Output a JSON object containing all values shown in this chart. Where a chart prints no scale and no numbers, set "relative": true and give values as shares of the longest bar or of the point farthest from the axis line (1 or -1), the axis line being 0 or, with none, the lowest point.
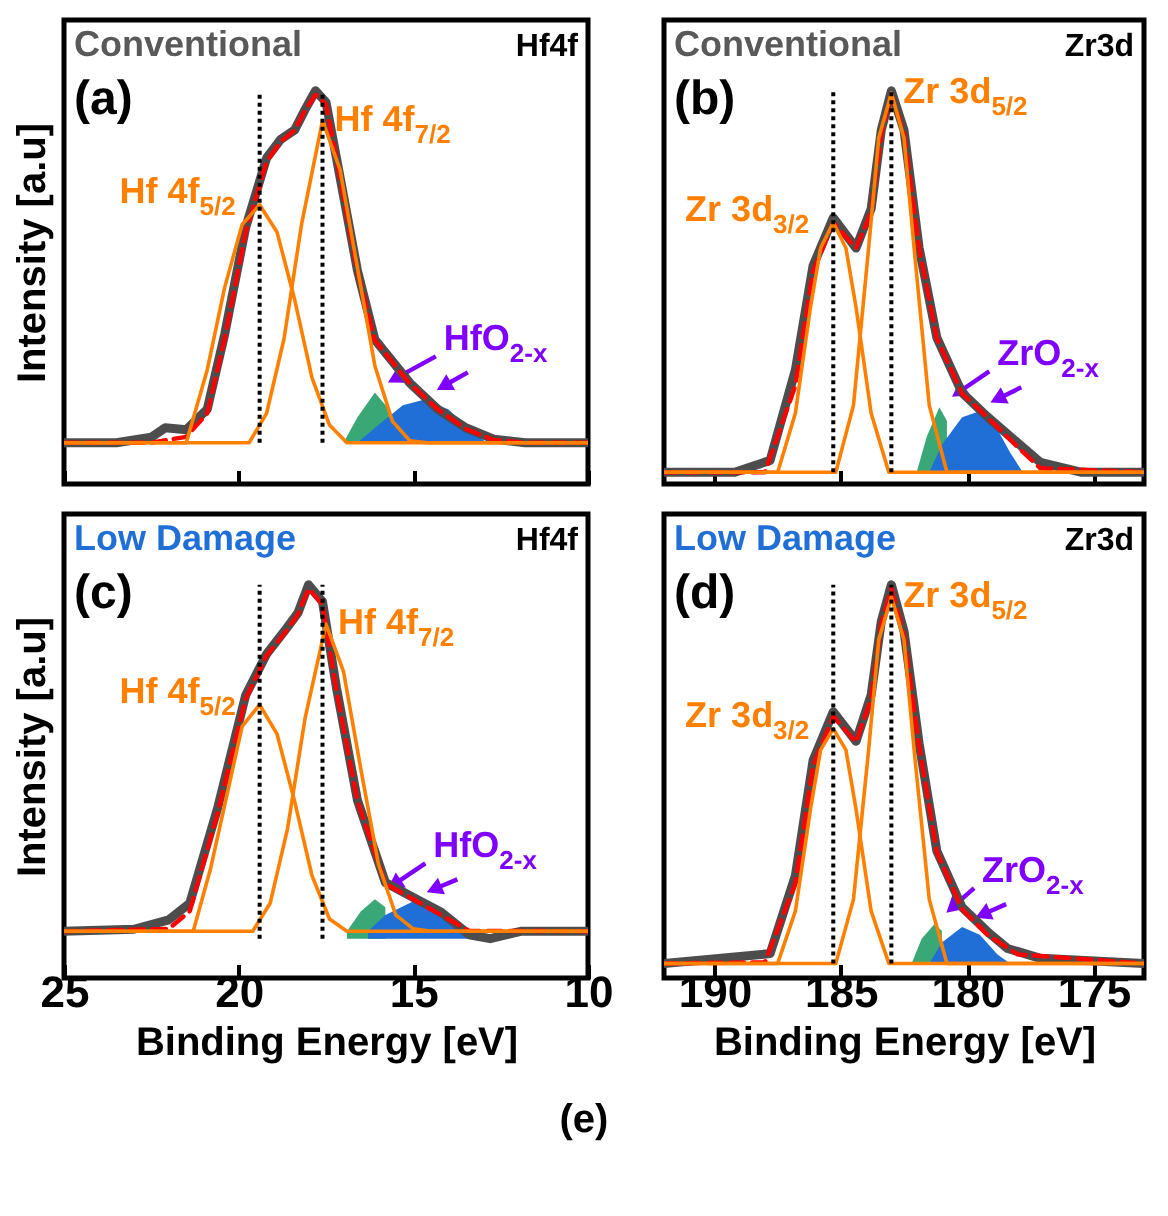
{
  "chart_data": [
    {
      "type": "line",
      "relative": true,
      "title": "Conventional",
      "subtitle": "Hf4f",
      "ylabel": "Intensity [a.u]",
      "xlim": [
        25,
        10
      ],
      "xticks": [
        25,
        20,
        15,
        10
      ],
      "tick_labels": false,
      "series": [
        {
          "color": "#4d4d4d",
          "x": [
            25,
            23.5,
            22.5,
            22.1,
            21.5,
            20.9,
            20.4,
            19.8,
            19.2,
            18.8,
            18.4,
            18.1,
            17.8,
            17.5,
            17.1,
            16.6,
            16.1,
            15.1,
            14.3,
            13.5,
            12.7,
            11.8,
            10.8,
            10
          ],
          "values": [
            0.105,
            0.105,
            0.119,
            0.143,
            0.138,
            0.19,
            0.381,
            0.652,
            0.829,
            0.876,
            0.9,
            0.952,
            1,
            0.971,
            0.781,
            0.543,
            0.367,
            0.257,
            0.19,
            0.143,
            0.114,
            0.105,
            0.105,
            0.105
          ]
        },
        {
          "color": "#ff0000",
          "line_style": "dashed",
          "x": [
            25,
            22.5,
            21.5,
            20.9,
            20.4,
            19.8,
            19.2,
            18.8,
            18.4,
            18.1,
            17.8,
            17.5,
            17.1,
            16.6,
            16.1,
            15.1,
            14.3,
            13.5,
            12.7,
            11.8,
            10
          ],
          "values": [
            0.105,
            0.105,
            0.12,
            0.18,
            0.37,
            0.64,
            0.82,
            0.87,
            0.9,
            0.95,
            0.99,
            0.965,
            0.78,
            0.54,
            0.365,
            0.255,
            0.19,
            0.14,
            0.112,
            0.105,
            0.105
          ]
        },
        {
          "name": "Hf 4f$_{5/2}$",
          "color": "#ff8000",
          "x": [
            25,
            21.5,
            20.9,
            20.4,
            19.9,
            19.4,
            18.9,
            18.4,
            17.9,
            17.4,
            16.9,
            10
          ],
          "values": [
            0.105,
            0.105,
            0.29,
            0.5,
            0.66,
            0.71,
            0.64,
            0.47,
            0.27,
            0.15,
            0.105,
            0.105
          ]
        },
        {
          "name": "Hf 4f$_{7/2}$",
          "color": "#ff8000",
          "x": [
            25,
            19.7,
            19.2,
            18.7,
            18.2,
            17.6,
            17.1,
            16.6,
            16.1,
            15.6,
            15.1,
            14.6,
            10
          ],
          "values": [
            0.105,
            0.105,
            0.18,
            0.37,
            0.66,
            0.924,
            0.8,
            0.55,
            0.3,
            0.16,
            0.11,
            0.105,
            0.105
          ]
        },
        {
          "name": "HfO$_{2-x}$",
          "type": "area",
          "color": "#3aa876",
          "x": [
            17,
            16.6,
            16.1,
            15.7
          ],
          "values": [
            0.105,
            0.17,
            0.233,
            0.19
          ]
        },
        {
          "type": "area",
          "color": "#1f6fd6",
          "x": [
            16.6,
            16,
            15.3,
            14.7,
            14,
            13.4,
            12.9
          ],
          "values": [
            0.105,
            0.15,
            0.2,
            0.214,
            0.19,
            0.14,
            0.105
          ]
        }
      ],
      "ref_lines": [
        {
          "axis": "x",
          "value": 19.4,
          "color": "#000000",
          "line_style": "dotted"
        },
        {
          "axis": "x",
          "value": 17.6,
          "color": "#000000",
          "line_style": "dotted"
        }
      ],
      "annotations": [
        "(a)"
      ]
    },
    {
      "type": "line",
      "relative": true,
      "title": "Conventional",
      "subtitle": "Zr3d",
      "xlim": [
        192,
        173
      ],
      "xticks": [
        190,
        185,
        180,
        175
      ],
      "tick_labels": false,
      "series": [
        {
          "color": "#4d4d4d",
          "x": [
            192,
            189.2,
            187.8,
            186.8,
            186.1,
            185.3,
            184.4,
            183.8,
            183.4,
            183,
            182.5,
            181.9,
            181.2,
            180.2,
            179.2,
            178.1,
            177.1,
            175.5,
            173
          ],
          "values": [
            0.03,
            0.03,
            0.06,
            0.29,
            0.555,
            0.677,
            0.6,
            0.7,
            0.9,
            1,
            0.9,
            0.6,
            0.372,
            0.232,
            0.171,
            0.11,
            0.055,
            0.03,
            0.03
          ]
        },
        {
          "color": "#ff0000",
          "line_style": "dashed",
          "x": [
            192,
            188,
            186.8,
            186.1,
            185.3,
            184.4,
            183.8,
            183.4,
            183,
            182.5,
            181.9,
            181.2,
            180.2,
            179.2,
            178.1,
            177.1,
            173
          ],
          "values": [
            0.03,
            0.03,
            0.25,
            0.54,
            0.665,
            0.6,
            0.69,
            0.89,
            0.99,
            0.89,
            0.6,
            0.37,
            0.23,
            0.17,
            0.1,
            0.04,
            0.03
          ]
        },
        {
          "name": "Zr 3d$_{3/2}$",
          "color": "#ff8000",
          "x": [
            192,
            187.5,
            186.8,
            186.2,
            185.8,
            185.3,
            184.8,
            184.4,
            183.8,
            183.1,
            173
          ],
          "values": [
            0.03,
            0.03,
            0.18,
            0.45,
            0.6,
            0.665,
            0.6,
            0.45,
            0.18,
            0.03,
            0.03
          ]
        },
        {
          "name": "Zr 3d$_{5/2}$",
          "color": "#ff8000",
          "x": [
            192,
            185.2,
            184.5,
            183.9,
            183.5,
            183,
            182.5,
            182.1,
            181.5,
            180.8,
            173
          ],
          "values": [
            0.03,
            0.03,
            0.2,
            0.6,
            0.88,
            0.994,
            0.88,
            0.6,
            0.2,
            0.03,
            0.03
          ]
        },
        {
          "name": "ZrO$_{2-x}$",
          "type": "area",
          "color": "#3aa876",
          "x": [
            182,
            181.6,
            181.1,
            180.8
          ],
          "values": [
            0.03,
            0.12,
            0.195,
            0.16
          ]
        },
        {
          "type": "area",
          "color": "#1f6fd6",
          "x": [
            181.5,
            181,
            180.2,
            179.6,
            178.9,
            178.3,
            177.8
          ],
          "values": [
            0.03,
            0.1,
            0.17,
            0.183,
            0.15,
            0.08,
            0.03
          ]
        }
      ],
      "ref_lines": [
        {
          "axis": "x",
          "value": 185.3,
          "color": "#000000",
          "line_style": "dotted"
        },
        {
          "axis": "x",
          "value": 183,
          "color": "#000000",
          "line_style": "dotted"
        }
      ],
      "annotations": [
        "(b)"
      ]
    },
    {
      "type": "line",
      "relative": true,
      "title": "Low Damage",
      "subtitle": "Hf4f",
      "ylabel": "Intensity [a.u]",
      "xlabel": "Binding Energy [eV]",
      "xlim": [
        25,
        10
      ],
      "xticks": [
        25,
        20,
        15,
        10
      ],
      "tick_labels": "x",
      "series": [
        {
          "color": "#4d4d4d",
          "x": [
            25,
            23,
            22,
            21.4,
            20.6,
            19.8,
            19.2,
            18.7,
            18.3,
            18,
            17.6,
            17.2,
            16.6,
            15.8,
            14.8,
            14.2,
            13.4,
            12.8,
            11.9,
            10.9,
            10
          ],
          "values": [
            0.119,
            0.124,
            0.148,
            0.19,
            0.433,
            0.719,
            0.824,
            0.881,
            0.929,
            1,
            0.957,
            0.738,
            0.452,
            0.243,
            0.195,
            0.167,
            0.11,
            0.1,
            0.119,
            0.119,
            0.119
          ]
        },
        {
          "color": "#ff0000",
          "line_style": "dashed",
          "x": [
            25,
            22,
            21.4,
            20.6,
            19.8,
            19.2,
            18.7,
            18.3,
            18,
            17.6,
            17.2,
            16.6,
            15.8,
            14.8,
            14.2,
            13.4,
            10
          ],
          "values": [
            0.119,
            0.125,
            0.17,
            0.42,
            0.71,
            0.82,
            0.875,
            0.925,
            0.99,
            0.95,
            0.73,
            0.45,
            0.24,
            0.19,
            0.16,
            0.12,
            0.119
          ]
        },
        {
          "name": "Hf 4f$_{5/2}$",
          "color": "#ff8000",
          "x": [
            25,
            21.3,
            20.8,
            20.3,
            19.9,
            19.4,
            18.9,
            18.4,
            17.9,
            17.4,
            16.9,
            10
          ],
          "values": [
            0.119,
            0.119,
            0.28,
            0.48,
            0.64,
            0.695,
            0.62,
            0.45,
            0.26,
            0.15,
            0.119,
            0.119
          ]
        },
        {
          "name": "Hf 4f$_{7/2}$",
          "color": "#ff8000",
          "x": [
            25,
            19.6,
            19.1,
            18.6,
            18.1,
            17.5,
            17,
            16.5,
            16,
            15.5,
            15,
            14.5,
            10
          ],
          "values": [
            0.119,
            0.119,
            0.19,
            0.38,
            0.66,
            0.9,
            0.78,
            0.53,
            0.29,
            0.16,
            0.125,
            0.119,
            0.119
          ]
        },
        {
          "name": "HfO$_{2-x}$",
          "type": "area",
          "color": "#3aa876",
          "x": [
            16.9,
            16.5,
            16.1,
            15.8
          ],
          "values": [
            0.119,
            0.17,
            0.2,
            0.18
          ]
        },
        {
          "type": "area",
          "color": "#1f6fd6",
          "x": [
            16.3,
            15.8,
            15,
            14.4,
            13.9,
            13.4
          ],
          "values": [
            0.119,
            0.16,
            0.195,
            0.18,
            0.14,
            0.119
          ]
        }
      ],
      "ref_lines": [
        {
          "axis": "x",
          "value": 19.4,
          "color": "#000000",
          "line_style": "dotted"
        },
        {
          "axis": "x",
          "value": 17.6,
          "color": "#000000",
          "line_style": "dotted"
        }
      ],
      "annotations": [
        "(c)"
      ]
    },
    {
      "type": "line",
      "relative": true,
      "title": "Low Damage",
      "subtitle": "Zr3d",
      "xlabel": "Binding Energy [eV]",
      "xlim": [
        192,
        173
      ],
      "xticks": [
        190,
        185,
        180,
        175
      ],
      "tick_labels": "x",
      "series": [
        {
          "color": "#4d4d4d",
          "x": [
            192,
            187.8,
            186.8,
            186.1,
            185.3,
            184.4,
            183.8,
            183.4,
            183,
            182.5,
            181.9,
            181.2,
            180.2,
            179.2,
            178.4,
            177.1,
            173
          ],
          "values": [
            0.037,
            0.062,
            0.26,
            0.553,
            0.677,
            0.602,
            0.72,
            0.907,
            1,
            0.882,
            0.596,
            0.323,
            0.18,
            0.118,
            0.075,
            0.05,
            0.037
          ]
        },
        {
          "color": "#ff0000",
          "line_style": "dashed",
          "x": [
            192,
            188,
            186.8,
            186.1,
            185.3,
            184.4,
            183.8,
            183.4,
            183,
            182.5,
            181.9,
            181.2,
            180.2,
            179.2,
            178,
            173
          ],
          "values": [
            0.037,
            0.04,
            0.24,
            0.54,
            0.665,
            0.6,
            0.71,
            0.9,
            0.99,
            0.87,
            0.59,
            0.32,
            0.175,
            0.11,
            0.06,
            0.037
          ]
        },
        {
          "name": "Zr 3d$_{3/2}$",
          "color": "#ff8000",
          "x": [
            192,
            187.5,
            186.8,
            186.2,
            185.8,
            185.3,
            184.8,
            184.4,
            183.8,
            183.1,
            173
          ],
          "values": [
            0.037,
            0.037,
            0.17,
            0.43,
            0.58,
            0.634,
            0.58,
            0.43,
            0.17,
            0.037,
            0.037
          ]
        },
        {
          "name": "Zr 3d$_{5/2}$",
          "color": "#ff8000",
          "x": [
            192,
            185.2,
            184.5,
            183.9,
            183.5,
            183,
            182.5,
            182.1,
            181.5,
            180.8,
            173
          ],
          "values": [
            0.037,
            0.037,
            0.2,
            0.58,
            0.86,
            0.969,
            0.86,
            0.58,
            0.2,
            0.037,
            0.037
          ]
        },
        {
          "name": "ZrO$_{2-x}$",
          "type": "area",
          "color": "#3aa876",
          "x": [
            182.2,
            181.8,
            181.3,
            181
          ],
          "values": [
            0.037,
            0.1,
            0.137,
            0.12
          ]
        },
        {
          "type": "area",
          "color": "#1f6fd6",
          "x": [
            181.5,
            181,
            180.2,
            179.5,
            178.8,
            178.3
          ],
          "values": [
            0.037,
            0.09,
            0.13,
            0.11,
            0.06,
            0.037
          ]
        }
      ],
      "ref_lines": [
        {
          "axis": "x",
          "value": 185.3,
          "color": "#000000",
          "line_style": "dotted"
        },
        {
          "axis": "x",
          "value": 183,
          "color": "#000000",
          "line_style": "dotted"
        }
      ],
      "annotations": [
        "(d)",
        "(e)"
      ]
    }
  ]
}
